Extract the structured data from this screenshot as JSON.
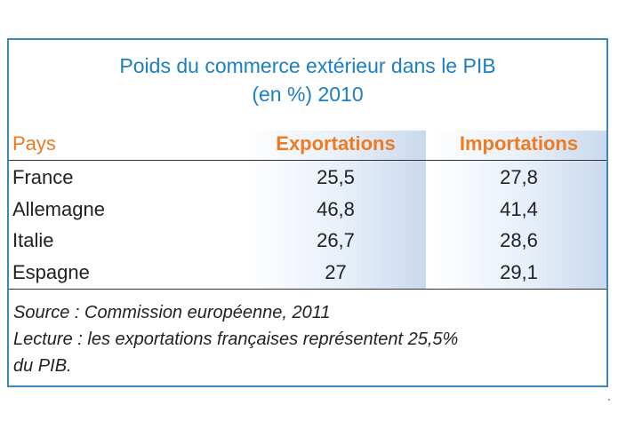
{
  "title": {
    "line1": "Poids du commerce extérieur dans le PIB",
    "line2": "(en %)  2010"
  },
  "columns": {
    "country": "Pays",
    "exports": "Exportations",
    "imports": "Importations"
  },
  "rows": [
    {
      "country": "France",
      "exports": "25,5",
      "imports": "27,8"
    },
    {
      "country": "Allemagne",
      "exports": "46,8",
      "imports": "41,4"
    },
    {
      "country": "Italie",
      "exports": "26,7",
      "imports": "28,6"
    },
    {
      "country": "Espagne",
      "exports": "27",
      "imports": "29,1"
    }
  ],
  "note": {
    "source": "Source : Commission européenne, 2011",
    "reading_line1": "Lecture : les exportations françaises représentent 25,5%",
    "reading_line2": "du PIB."
  },
  "colors": {
    "title": "#1b7fc0",
    "header": "#ee7b22",
    "border": "#3e88b6",
    "column_shade": "#c9d9ee"
  }
}
